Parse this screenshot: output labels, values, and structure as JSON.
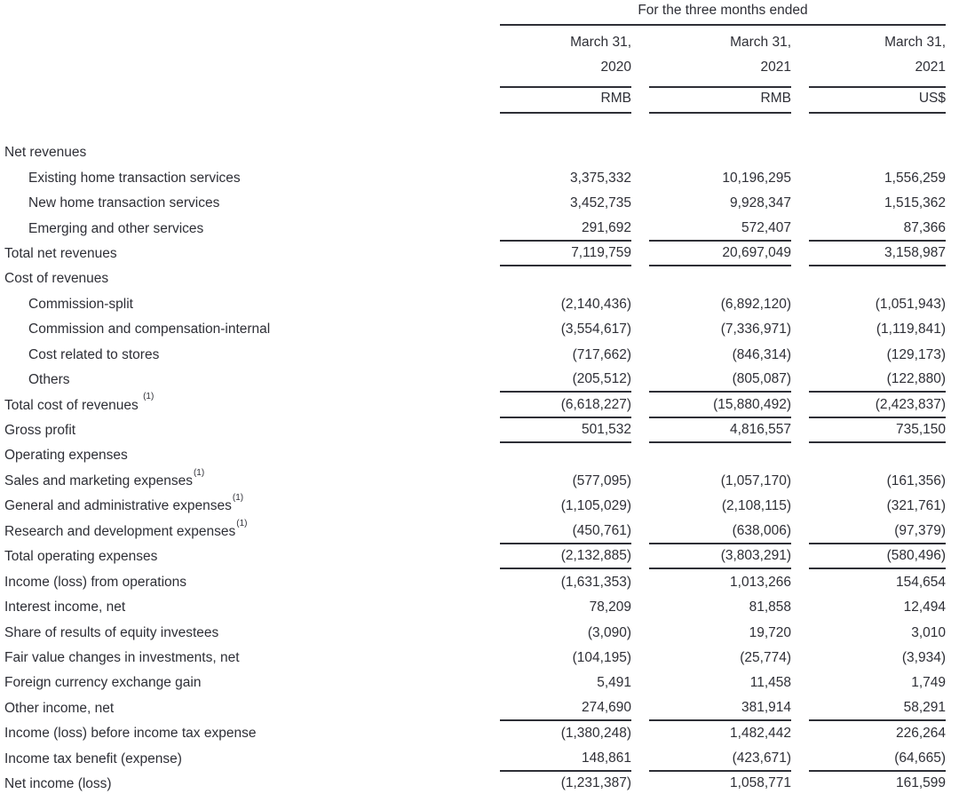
{
  "colors": {
    "text": "#2e2f36",
    "rule": "#2e2f36",
    "background": "#ffffff"
  },
  "table": {
    "spanner": "For the three months ended",
    "columns": [
      {
        "period_line1": "March 31,",
        "period_line2": "2020",
        "unit": "RMB"
      },
      {
        "period_line1": "March 31,",
        "period_line2": "2021",
        "unit": "RMB"
      },
      {
        "period_line1": "March 31,",
        "period_line2": "2021",
        "unit": "US$"
      }
    ],
    "rows": [
      {
        "label": "Net revenues",
        "indent": 0,
        "values": null,
        "underline": false
      },
      {
        "label": "Existing home transaction services",
        "indent": 1,
        "values": [
          "3,375,332",
          "10,196,295",
          "1,556,259"
        ],
        "underline": false
      },
      {
        "label": "New home transaction services",
        "indent": 1,
        "values": [
          "3,452,735",
          "9,928,347",
          "1,515,362"
        ],
        "underline": false
      },
      {
        "label": "Emerging and other services",
        "indent": 1,
        "values": [
          "291,692",
          "572,407",
          "87,366"
        ],
        "underline": true
      },
      {
        "label": "Total net revenues",
        "indent": 0,
        "values": [
          "7,119,759",
          "20,697,049",
          "3,158,987"
        ],
        "underline": true
      },
      {
        "label": "Cost of revenues",
        "indent": 0,
        "values": null,
        "underline": false
      },
      {
        "label": "Commission-split",
        "indent": 1,
        "values": [
          "(2,140,436)",
          "(6,892,120)",
          "(1,051,943)"
        ],
        "underline": false
      },
      {
        "label": "Commission and compensation-internal",
        "indent": 1,
        "values": [
          "(3,554,617)",
          "(7,336,971)",
          "(1,119,841)"
        ],
        "underline": false
      },
      {
        "label": "Cost related to stores",
        "indent": 1,
        "values": [
          "(717,662)",
          "(846,314)",
          "(129,173)"
        ],
        "underline": false
      },
      {
        "label": "Others",
        "indent": 1,
        "values": [
          "(205,512)",
          "(805,087)",
          "(122,880)"
        ],
        "underline": true
      },
      {
        "label": "Total cost of revenues",
        "sup": "(1)",
        "sup_space": true,
        "indent": 0,
        "values": [
          "(6,618,227)",
          "(15,880,492)",
          "(2,423,837)"
        ],
        "underline": true
      },
      {
        "label": "Gross profit",
        "indent": 0,
        "values": [
          "501,532",
          "4,816,557",
          "735,150"
        ],
        "underline": true
      },
      {
        "label": "Operating expenses",
        "indent": 0,
        "values": null,
        "underline": false
      },
      {
        "label": "Sales and marketing expenses",
        "sup": "(1)",
        "indent": 0,
        "values": [
          "(577,095)",
          "(1,057,170)",
          "(161,356)"
        ],
        "underline": false
      },
      {
        "label": "General and administrative expenses",
        "sup": "(1)",
        "indent": 0,
        "values": [
          "(1,105,029)",
          "(2,108,115)",
          "(321,761)"
        ],
        "underline": false
      },
      {
        "label": "Research and development expenses",
        "sup": "(1)",
        "indent": 0,
        "values": [
          "(450,761)",
          "(638,006)",
          "(97,379)"
        ],
        "underline": true
      },
      {
        "label": "Total operating expenses",
        "indent": 0,
        "values": [
          "(2,132,885)",
          "(3,803,291)",
          "(580,496)"
        ],
        "underline": true
      },
      {
        "label": "Income (loss) from operations",
        "indent": 0,
        "values": [
          "(1,631,353)",
          "1,013,266",
          "154,654"
        ],
        "underline": false
      },
      {
        "label": "Interest income, net",
        "indent": 0,
        "values": [
          "78,209",
          "81,858",
          "12,494"
        ],
        "underline": false
      },
      {
        "label": "Share of results of equity investees",
        "indent": 0,
        "values": [
          "(3,090)",
          "19,720",
          "3,010"
        ],
        "underline": false
      },
      {
        "label": "Fair value changes in investments, net",
        "indent": 0,
        "values": [
          "(104,195)",
          "(25,774)",
          "(3,934)"
        ],
        "underline": false
      },
      {
        "label": "Foreign currency exchange gain",
        "indent": 0,
        "values": [
          "5,491",
          "11,458",
          "1,749"
        ],
        "underline": false
      },
      {
        "label": "Other income, net",
        "indent": 0,
        "values": [
          "274,690",
          "381,914",
          "58,291"
        ],
        "underline": true
      },
      {
        "label": "Income (loss) before income tax expense",
        "indent": 0,
        "values": [
          "(1,380,248)",
          "1,482,442",
          "226,264"
        ],
        "underline": false
      },
      {
        "label": "Income tax benefit (expense)",
        "indent": 0,
        "values": [
          "148,861",
          "(423,671)",
          "(64,665)"
        ],
        "underline": true
      },
      {
        "label": "Net income (loss)",
        "indent": 0,
        "values": [
          "(1,231,387)",
          "1,058,771",
          "161,599"
        ],
        "underline": true
      }
    ]
  }
}
